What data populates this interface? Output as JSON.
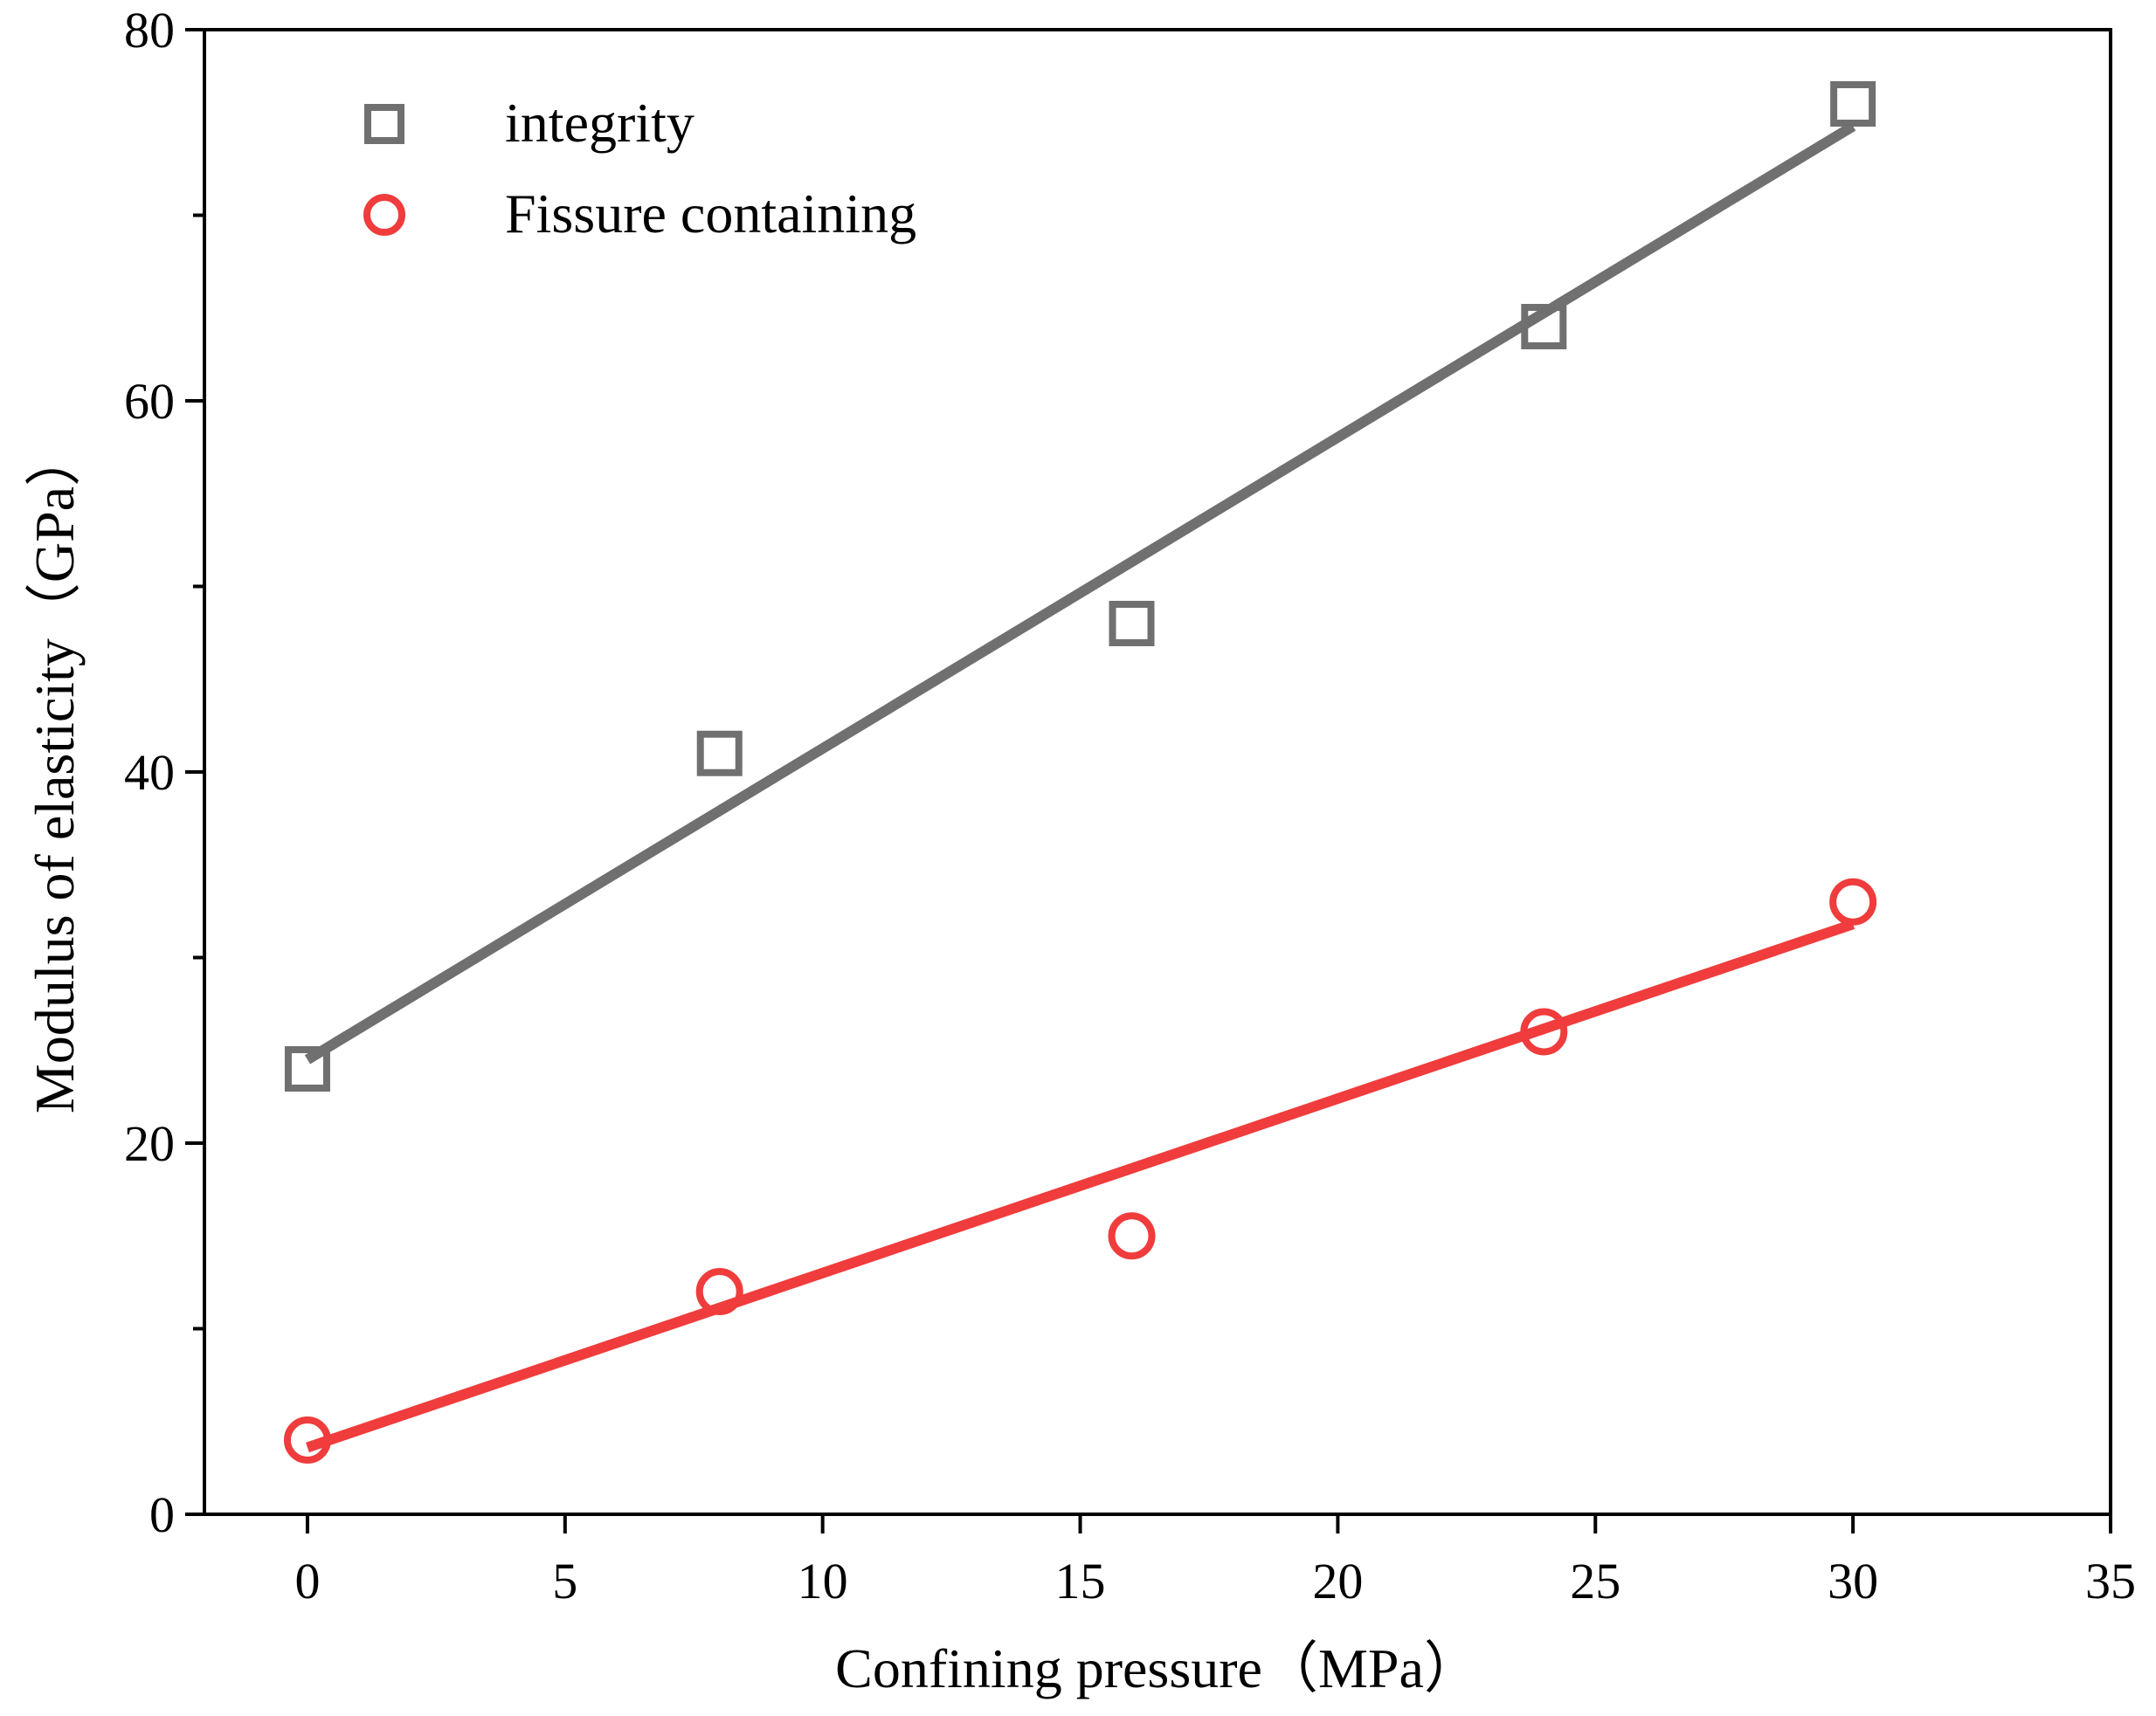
{
  "chart_data": {
    "type": "scatter",
    "title": "",
    "xlabel": "Confining pressure（MPa）",
    "ylabel": "Modulus of elasticity（GPa）",
    "xlim": [
      -2,
      35
    ],
    "ylim": [
      0,
      80
    ],
    "xticks": [
      0,
      5,
      10,
      15,
      20,
      25,
      30,
      35
    ],
    "yticks": [
      0,
      20,
      40,
      60,
      80
    ],
    "yminor": [
      10,
      30,
      50,
      70
    ],
    "grid": false,
    "legend_position": "top-left",
    "series": [
      {
        "name": "integrity",
        "marker": "square",
        "color": "#707070",
        "x": [
          0,
          8,
          16,
          24,
          30
        ],
        "y": [
          24,
          41,
          48,
          64,
          76
        ],
        "fit": {
          "x": [
            0,
            30
          ],
          "y": [
            24.5,
            74.8
          ]
        }
      },
      {
        "name": "Fissure containing",
        "marker": "circle",
        "color": "#f03c3c",
        "x": [
          0,
          8,
          16,
          24,
          30
        ],
        "y": [
          4,
          12,
          15,
          26,
          33
        ],
        "fit": {
          "x": [
            0,
            30
          ],
          "y": [
            3.6,
            31.8
          ]
        }
      }
    ]
  }
}
